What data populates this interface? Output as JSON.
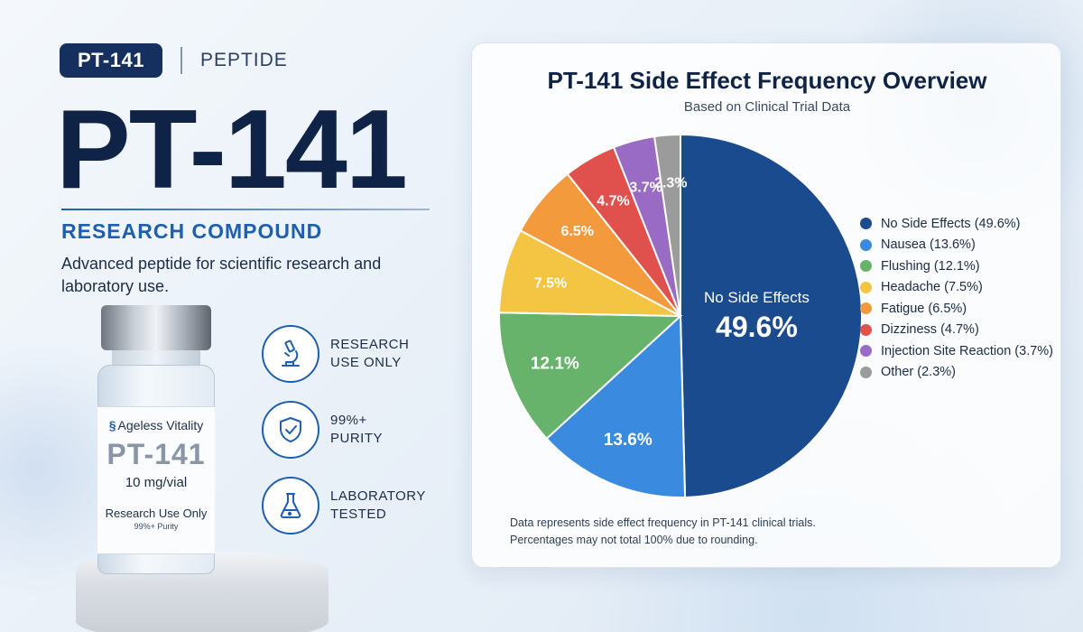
{
  "header": {
    "badge": "PT-141",
    "badge_sub": "PEPTIDE",
    "hero_title": "PT-141",
    "subtitle": "RESEARCH COMPOUND",
    "description": "Advanced peptide for scientific research and laboratory use."
  },
  "vial": {
    "brand": "Ageless Vitality",
    "name": "PT-141",
    "dose": "10 mg/vial",
    "use": "Research Use Only",
    "purity": "99%+ Purity"
  },
  "features": [
    {
      "line1": "RESEARCH",
      "line2": "USE ONLY",
      "icon": "microscope-icon"
    },
    {
      "line1": "99%+",
      "line2": "PURITY",
      "icon": "shield-check-icon"
    },
    {
      "line1": "LABORATORY",
      "line2": "TESTED",
      "icon": "flask-icon"
    }
  ],
  "chart_data": {
    "type": "pie",
    "title": "PT-141 Side Effect Frequency Overview",
    "subtitle": "Based on Clinical Trial Data",
    "categories": [
      "No Side Effects",
      "Nausea",
      "Flushing",
      "Headache",
      "Fatigue",
      "Dizziness",
      "Injection Site Reaction",
      "Other"
    ],
    "values": [
      49.6,
      13.6,
      12.1,
      7.5,
      6.5,
      4.7,
      3.7,
      2.3
    ],
    "slice_labels": [
      "49.6%",
      "13.6%",
      "12.1%",
      "7.5%",
      "6.5%",
      "4.7%",
      "3.7%",
      "2.3%"
    ],
    "center_label": "No Side Effects",
    "legend_labels": [
      "No Side Effects (49.6%)",
      "Nausea (13.6%)",
      "Flushing (12.1%)",
      "Headache (7.5%)",
      "Fatigue (6.5%)",
      "Dizziness (4.7%)",
      "Injection Site Reaction (3.7%)",
      "Other (2.3%)"
    ],
    "colors": [
      "#1b4b8f",
      "#3a8ae0",
      "#68b36b",
      "#f4c542",
      "#f39a3c",
      "#e0504c",
      "#9a6bc4",
      "#9b9b9b"
    ],
    "legend_position": "right",
    "footnote_line1": "Data represents side effect frequency in PT-141 clinical trials.",
    "footnote_line2": "Percentages may not total 100% due to rounding."
  }
}
